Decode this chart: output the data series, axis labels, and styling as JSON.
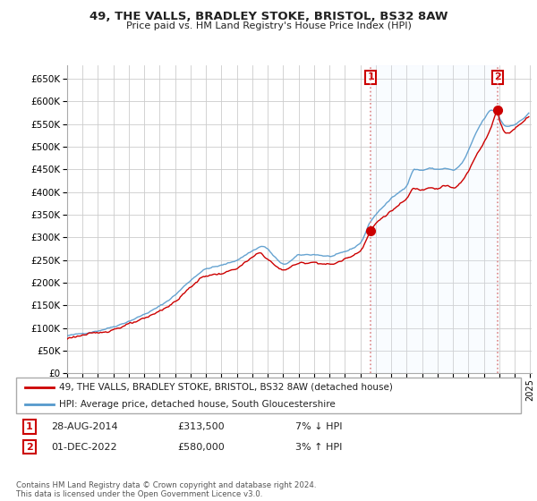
{
  "title": "49, THE VALLS, BRADLEY STOKE, BRISTOL, BS32 8AW",
  "subtitle": "Price paid vs. HM Land Registry's House Price Index (HPI)",
  "legend_line1": "49, THE VALLS, BRADLEY STOKE, BRISTOL, BS32 8AW (detached house)",
  "legend_line2": "HPI: Average price, detached house, South Gloucestershire",
  "annotation1_label": "1",
  "annotation1_date": "28-AUG-2014",
  "annotation1_price": "£313,500",
  "annotation1_hpi": "7% ↓ HPI",
  "annotation2_label": "2",
  "annotation2_date": "01-DEC-2022",
  "annotation2_price": "£580,000",
  "annotation2_hpi": "3% ↑ HPI",
  "footer": "Contains HM Land Registry data © Crown copyright and database right 2024.\nThis data is licensed under the Open Government Licence v3.0.",
  "red_color": "#cc0000",
  "blue_color": "#5599cc",
  "shade_color": "#ddeeff",
  "vline_color": "#ffaaaa",
  "grid_color": "#cccccc",
  "background_color": "#ffffff",
  "ylim": [
    0,
    680000
  ],
  "yticks": [
    0,
    50000,
    100000,
    150000,
    200000,
    250000,
    300000,
    350000,
    400000,
    450000,
    500000,
    550000,
    600000,
    650000
  ],
  "sale1_x": 2014.667,
  "sale1_y": 313500,
  "sale2_x": 2022.917,
  "sale2_y": 580000,
  "xlim_left": 1995.0,
  "xlim_right": 2025.1
}
